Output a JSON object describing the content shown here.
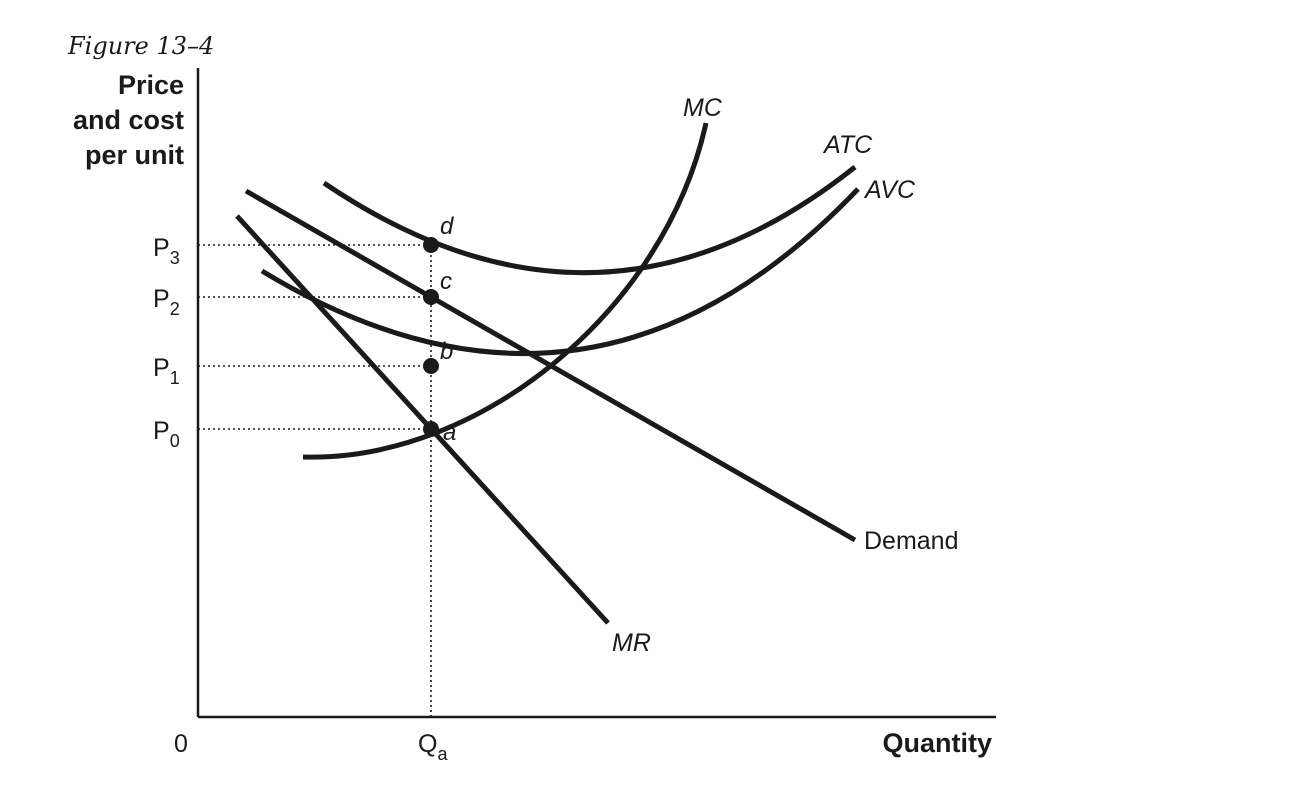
{
  "figure": {
    "title": "Figure 13–4",
    "y_axis_label": [
      "Price",
      "and cost",
      "per unit"
    ],
    "x_axis_label": "Quantity",
    "origin_label": "0"
  },
  "ticks": {
    "y": [
      {
        "main": "P",
        "sub": "3"
      },
      {
        "main": "P",
        "sub": "2"
      },
      {
        "main": "P",
        "sub": "1"
      },
      {
        "main": "P",
        "sub": "0"
      }
    ],
    "x": [
      {
        "main": "Q",
        "sub": "a"
      }
    ]
  },
  "curves": {
    "mc": "MC",
    "atc": "ATC",
    "avc": "AVC",
    "demand": "Demand",
    "mr": "MR"
  },
  "points": {
    "a": "a",
    "b": "b",
    "c": "c",
    "d": "d"
  }
}
